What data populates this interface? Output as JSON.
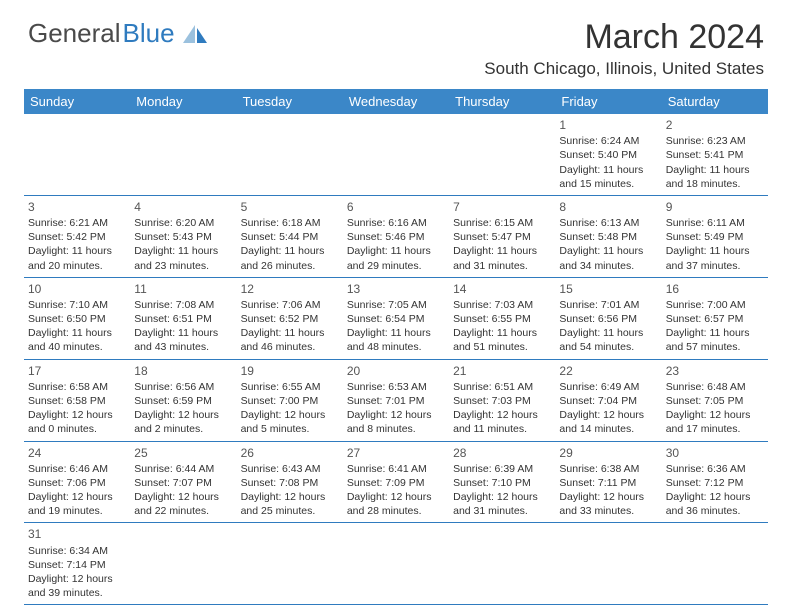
{
  "brand": {
    "part1": "General",
    "part2": "Blue"
  },
  "title": "March 2024",
  "location": "South Chicago, Illinois, United States",
  "colors": {
    "header_bg": "#3b87c8",
    "header_text": "#ffffff",
    "border": "#2f7bbf",
    "body_text": "#333333",
    "bg": "#ffffff"
  },
  "day_names": [
    "Sunday",
    "Monday",
    "Tuesday",
    "Wednesday",
    "Thursday",
    "Friday",
    "Saturday"
  ],
  "weeks": [
    [
      null,
      null,
      null,
      null,
      null,
      {
        "n": "1",
        "sunrise": "6:24 AM",
        "sunset": "5:40 PM",
        "dl1": "Daylight: 11 hours",
        "dl2": "and 15 minutes."
      },
      {
        "n": "2",
        "sunrise": "6:23 AM",
        "sunset": "5:41 PM",
        "dl1": "Daylight: 11 hours",
        "dl2": "and 18 minutes."
      }
    ],
    [
      {
        "n": "3",
        "sunrise": "6:21 AM",
        "sunset": "5:42 PM",
        "dl1": "Daylight: 11 hours",
        "dl2": "and 20 minutes."
      },
      {
        "n": "4",
        "sunrise": "6:20 AM",
        "sunset": "5:43 PM",
        "dl1": "Daylight: 11 hours",
        "dl2": "and 23 minutes."
      },
      {
        "n": "5",
        "sunrise": "6:18 AM",
        "sunset": "5:44 PM",
        "dl1": "Daylight: 11 hours",
        "dl2": "and 26 minutes."
      },
      {
        "n": "6",
        "sunrise": "6:16 AM",
        "sunset": "5:46 PM",
        "dl1": "Daylight: 11 hours",
        "dl2": "and 29 minutes."
      },
      {
        "n": "7",
        "sunrise": "6:15 AM",
        "sunset": "5:47 PM",
        "dl1": "Daylight: 11 hours",
        "dl2": "and 31 minutes."
      },
      {
        "n": "8",
        "sunrise": "6:13 AM",
        "sunset": "5:48 PM",
        "dl1": "Daylight: 11 hours",
        "dl2": "and 34 minutes."
      },
      {
        "n": "9",
        "sunrise": "6:11 AM",
        "sunset": "5:49 PM",
        "dl1": "Daylight: 11 hours",
        "dl2": "and 37 minutes."
      }
    ],
    [
      {
        "n": "10",
        "sunrise": "7:10 AM",
        "sunset": "6:50 PM",
        "dl1": "Daylight: 11 hours",
        "dl2": "and 40 minutes."
      },
      {
        "n": "11",
        "sunrise": "7:08 AM",
        "sunset": "6:51 PM",
        "dl1": "Daylight: 11 hours",
        "dl2": "and 43 minutes."
      },
      {
        "n": "12",
        "sunrise": "7:06 AM",
        "sunset": "6:52 PM",
        "dl1": "Daylight: 11 hours",
        "dl2": "and 46 minutes."
      },
      {
        "n": "13",
        "sunrise": "7:05 AM",
        "sunset": "6:54 PM",
        "dl1": "Daylight: 11 hours",
        "dl2": "and 48 minutes."
      },
      {
        "n": "14",
        "sunrise": "7:03 AM",
        "sunset": "6:55 PM",
        "dl1": "Daylight: 11 hours",
        "dl2": "and 51 minutes."
      },
      {
        "n": "15",
        "sunrise": "7:01 AM",
        "sunset": "6:56 PM",
        "dl1": "Daylight: 11 hours",
        "dl2": "and 54 minutes."
      },
      {
        "n": "16",
        "sunrise": "7:00 AM",
        "sunset": "6:57 PM",
        "dl1": "Daylight: 11 hours",
        "dl2": "and 57 minutes."
      }
    ],
    [
      {
        "n": "17",
        "sunrise": "6:58 AM",
        "sunset": "6:58 PM",
        "dl1": "Daylight: 12 hours",
        "dl2": "and 0 minutes."
      },
      {
        "n": "18",
        "sunrise": "6:56 AM",
        "sunset": "6:59 PM",
        "dl1": "Daylight: 12 hours",
        "dl2": "and 2 minutes."
      },
      {
        "n": "19",
        "sunrise": "6:55 AM",
        "sunset": "7:00 PM",
        "dl1": "Daylight: 12 hours",
        "dl2": "and 5 minutes."
      },
      {
        "n": "20",
        "sunrise": "6:53 AM",
        "sunset": "7:01 PM",
        "dl1": "Daylight: 12 hours",
        "dl2": "and 8 minutes."
      },
      {
        "n": "21",
        "sunrise": "6:51 AM",
        "sunset": "7:03 PM",
        "dl1": "Daylight: 12 hours",
        "dl2": "and 11 minutes."
      },
      {
        "n": "22",
        "sunrise": "6:49 AM",
        "sunset": "7:04 PM",
        "dl1": "Daylight: 12 hours",
        "dl2": "and 14 minutes."
      },
      {
        "n": "23",
        "sunrise": "6:48 AM",
        "sunset": "7:05 PM",
        "dl1": "Daylight: 12 hours",
        "dl2": "and 17 minutes."
      }
    ],
    [
      {
        "n": "24",
        "sunrise": "6:46 AM",
        "sunset": "7:06 PM",
        "dl1": "Daylight: 12 hours",
        "dl2": "and 19 minutes."
      },
      {
        "n": "25",
        "sunrise": "6:44 AM",
        "sunset": "7:07 PM",
        "dl1": "Daylight: 12 hours",
        "dl2": "and 22 minutes."
      },
      {
        "n": "26",
        "sunrise": "6:43 AM",
        "sunset": "7:08 PM",
        "dl1": "Daylight: 12 hours",
        "dl2": "and 25 minutes."
      },
      {
        "n": "27",
        "sunrise": "6:41 AM",
        "sunset": "7:09 PM",
        "dl1": "Daylight: 12 hours",
        "dl2": "and 28 minutes."
      },
      {
        "n": "28",
        "sunrise": "6:39 AM",
        "sunset": "7:10 PM",
        "dl1": "Daylight: 12 hours",
        "dl2": "and 31 minutes."
      },
      {
        "n": "29",
        "sunrise": "6:38 AM",
        "sunset": "7:11 PM",
        "dl1": "Daylight: 12 hours",
        "dl2": "and 33 minutes."
      },
      {
        "n": "30",
        "sunrise": "6:36 AM",
        "sunset": "7:12 PM",
        "dl1": "Daylight: 12 hours",
        "dl2": "and 36 minutes."
      }
    ],
    [
      {
        "n": "31",
        "sunrise": "6:34 AM",
        "sunset": "7:14 PM",
        "dl1": "Daylight: 12 hours",
        "dl2": "and 39 minutes."
      },
      null,
      null,
      null,
      null,
      null,
      null
    ]
  ]
}
